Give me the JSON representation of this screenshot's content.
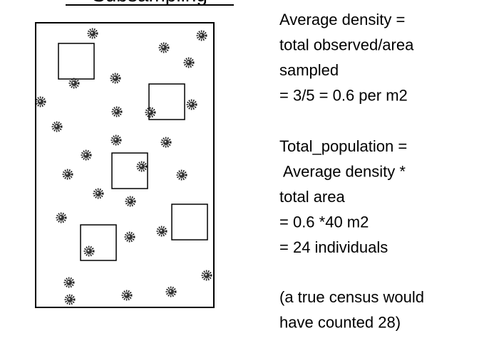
{
  "title": "Subsampling",
  "paragraphs": [
    [
      "Average density =",
      "total observed/area",
      "sampled",
      "= 3/5 = 0.6 per m2"
    ],
    [
      "Total_population =",
      " Average density *",
      "total area",
      "= 0.6 *40 m2",
      "= 24 individuals"
    ],
    [
      "(a true census would",
      "have counted 28)"
    ]
  ]
}
